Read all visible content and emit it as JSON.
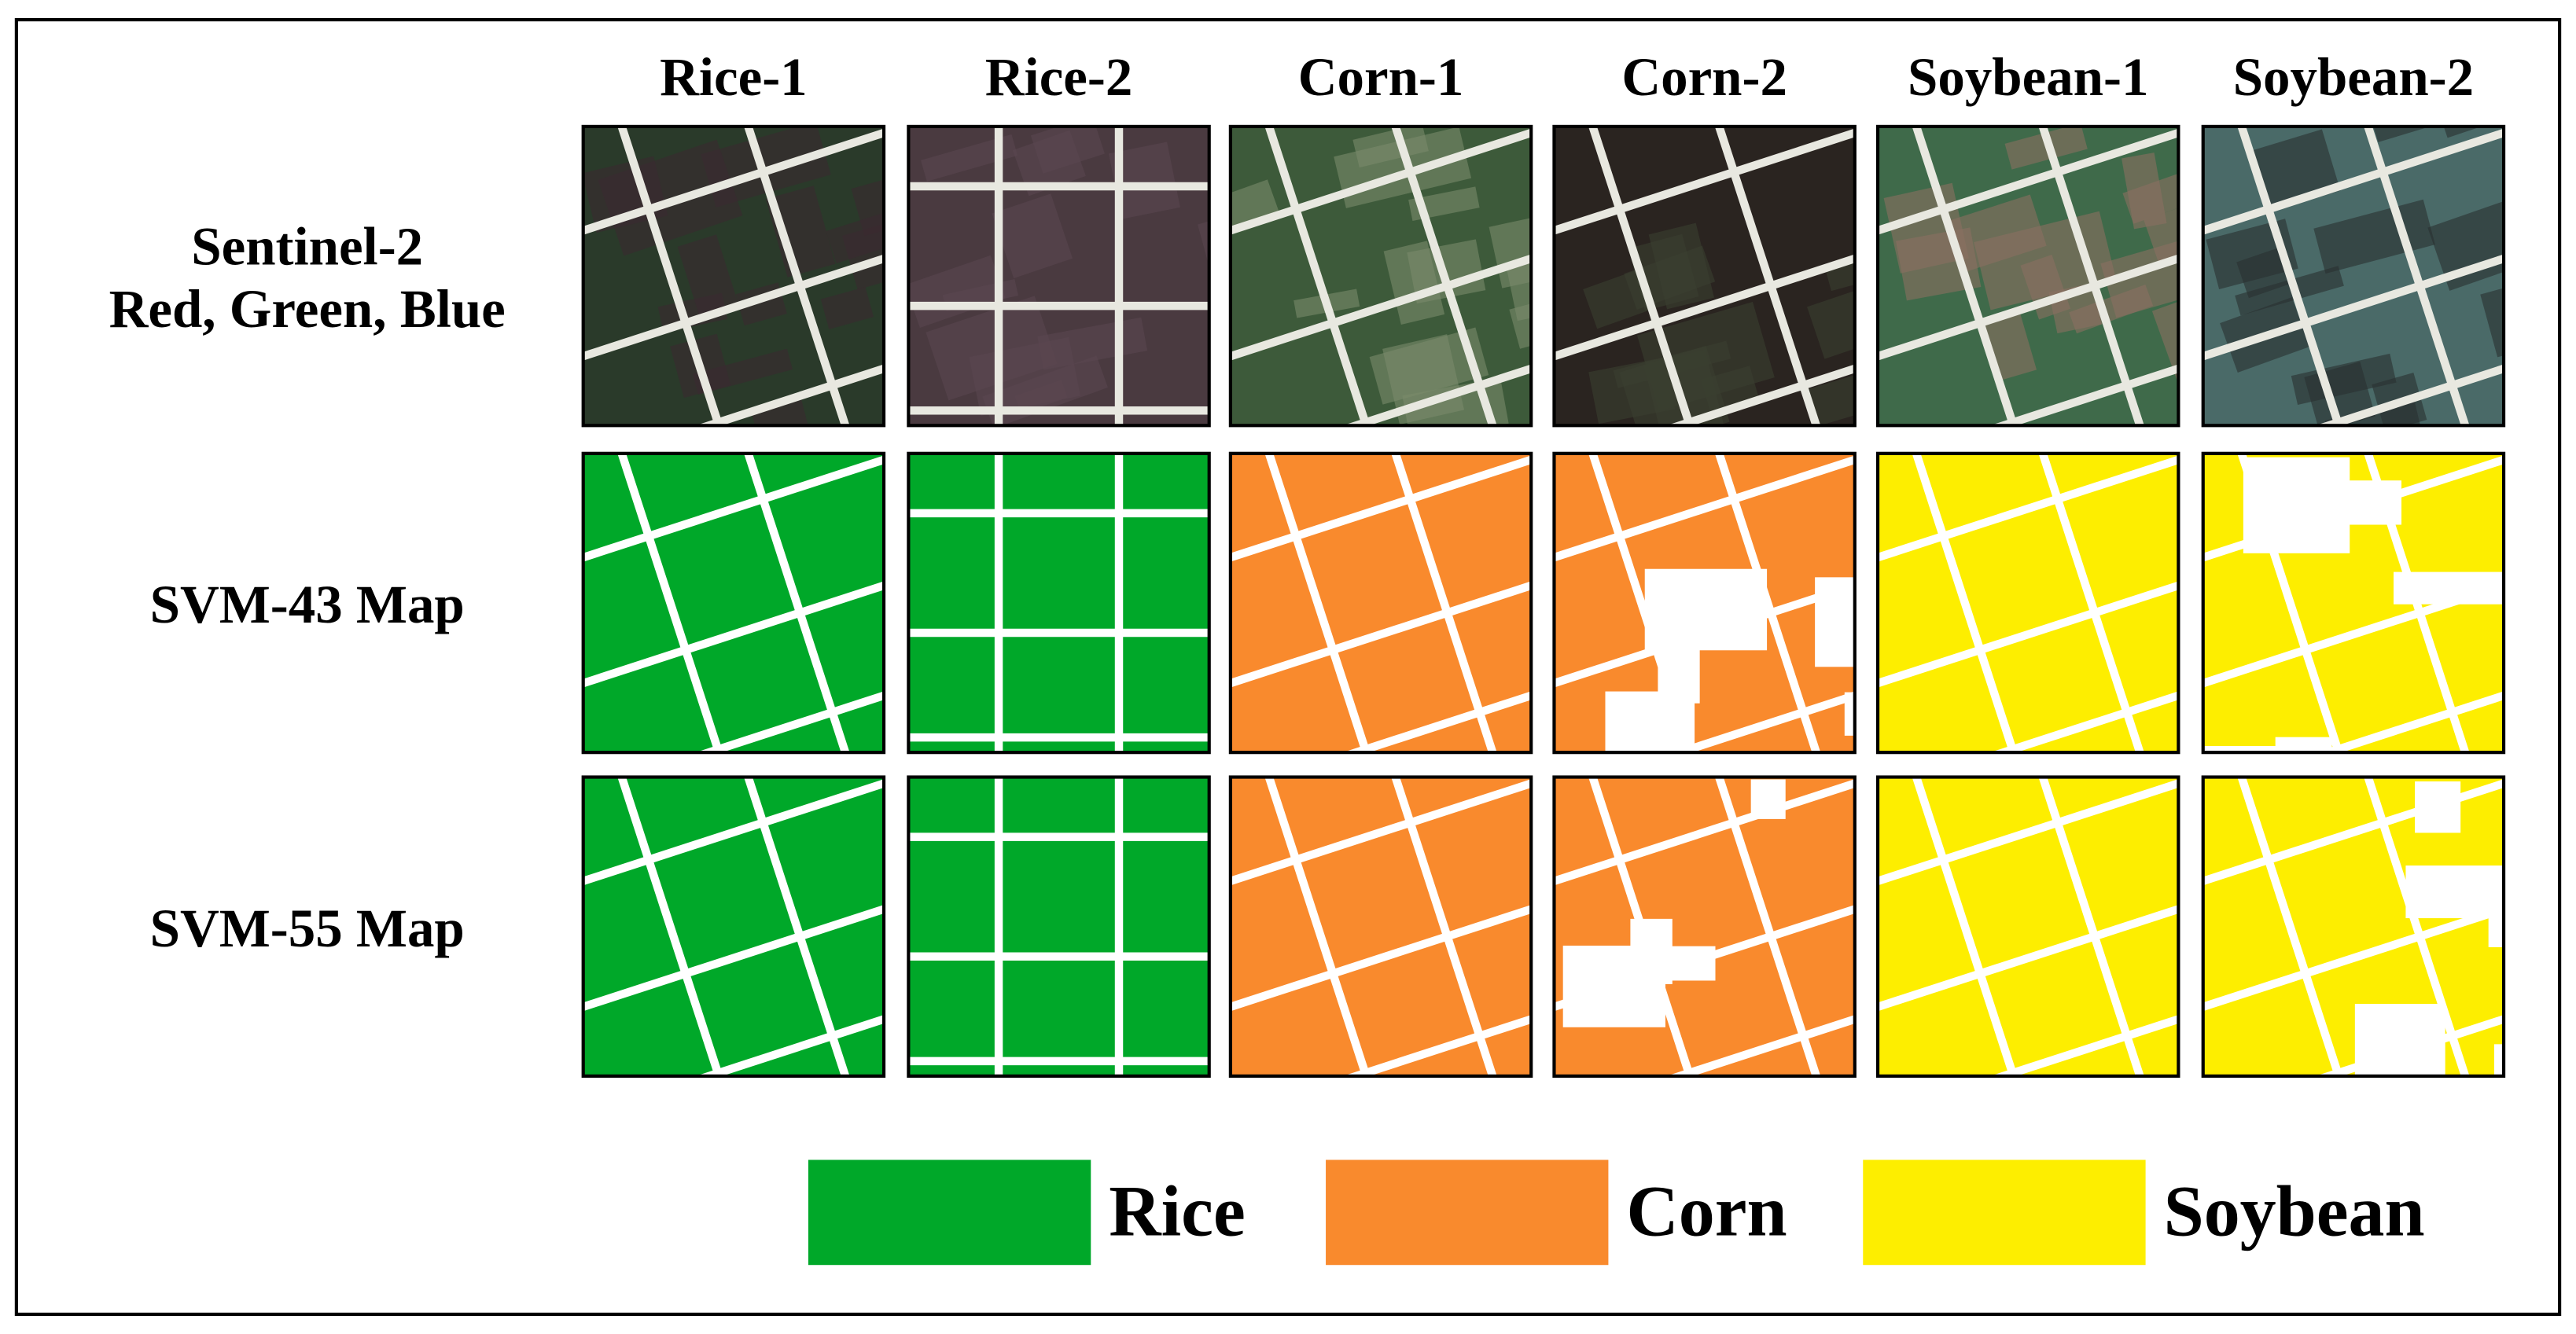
{
  "columns": [
    "Rice-1",
    "Rice-2",
    "Corn-1",
    "Corn-2",
    "Soybean-1",
    "Soybean-2"
  ],
  "rows": [
    [
      "Sentinel-2",
      "Red, Green, Blue"
    ],
    [
      "SVM-43 Map"
    ],
    [
      "SVM-55 Map"
    ]
  ],
  "legend": [
    {
      "label": "Rice",
      "color": "#00a829"
    },
    {
      "label": "Corn",
      "color": "#f98a2d"
    },
    {
      "label": "Soybean",
      "color": "#fdee00"
    }
  ]
}
